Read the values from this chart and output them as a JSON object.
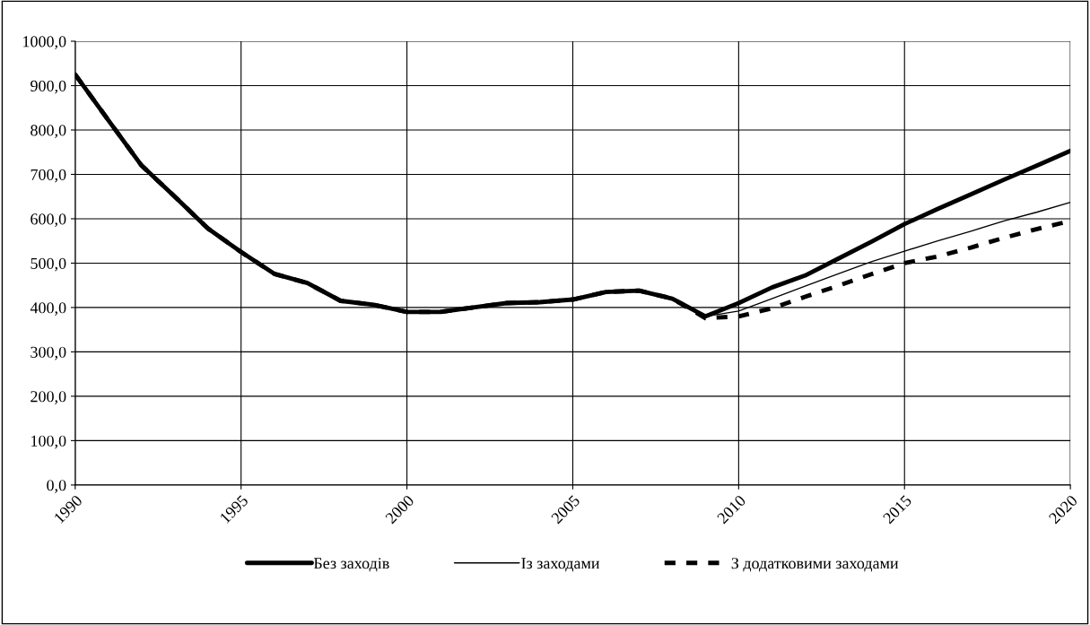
{
  "chart_data": {
    "type": "line",
    "x": [
      1990,
      1991,
      1992,
      1993,
      1994,
      1995,
      1996,
      1997,
      1998,
      1999,
      2000,
      2001,
      2002,
      2003,
      2004,
      2005,
      2006,
      2007,
      2008,
      2009,
      2010,
      2011,
      2012,
      2013,
      2014,
      2015,
      2016,
      2017,
      2018,
      2019,
      2020
    ],
    "series": [
      {
        "name": "Без заходів",
        "color": "#000000",
        "line_style": "solid",
        "values": [
          925,
          822,
          720,
          650,
          578,
          525,
          476,
          455,
          415,
          406,
          390,
          390,
          400,
          410,
          412,
          418,
          435,
          438,
          420,
          380,
          410,
          445,
          472,
          510,
          548,
          588,
          622,
          655,
          688,
          720,
          753
        ]
      },
      {
        "name": "Із заходами",
        "color": "#000000",
        "line_style": "solid",
        "values": [
          925,
          822,
          720,
          650,
          578,
          525,
          476,
          455,
          415,
          406,
          390,
          390,
          400,
          410,
          412,
          418,
          435,
          438,
          420,
          380,
          392,
          420,
          448,
          476,
          503,
          527,
          550,
          572,
          595,
          615,
          637
        ]
      },
      {
        "name": "З додатковими заходами",
        "color": "#000000",
        "line_style": "dashed",
        "values": [
          925,
          822,
          720,
          650,
          578,
          525,
          476,
          455,
          415,
          406,
          390,
          390,
          400,
          410,
          412,
          418,
          435,
          438,
          420,
          376,
          380,
          398,
          424,
          449,
          475,
          500,
          515,
          535,
          557,
          577,
          595
        ]
      }
    ],
    "xlim": [
      1990,
      2020
    ],
    "xticks": [
      1990,
      1995,
      2000,
      2005,
      2010,
      2015,
      2020
    ],
    "ylim": [
      0,
      1000
    ],
    "yticks": [
      {
        "value": 0,
        "label": "0,0"
      },
      {
        "value": 100,
        "label": "100,0"
      },
      {
        "value": 200,
        "label": "200,0"
      },
      {
        "value": 300,
        "label": "300,0"
      },
      {
        "value": 400,
        "label": "400,0"
      },
      {
        "value": 500,
        "label": "500,0"
      },
      {
        "value": 600,
        "label": "600,0"
      },
      {
        "value": 700,
        "label": "700,0"
      },
      {
        "value": 800,
        "label": "800,0"
      },
      {
        "value": 900,
        "label": "900,0"
      },
      {
        "value": 1000,
        "label": "1000,0"
      }
    ],
    "grid": true,
    "legend": "bottom",
    "marker": "none"
  }
}
